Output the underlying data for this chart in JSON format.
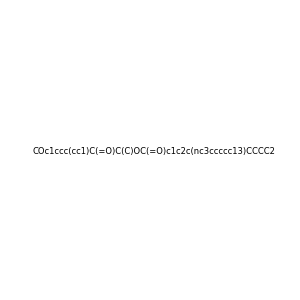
{
  "smiles": "COc1ccc(cc1)C(=O)C(C)OC(=O)c1c2c(nc3ccccc13)CCCC2",
  "title": "",
  "img_size": [
    300,
    300
  ],
  "background_color": "#f0f0f0"
}
